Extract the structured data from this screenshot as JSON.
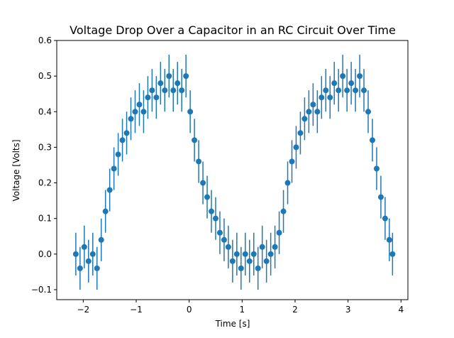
{
  "chart_data": {
    "type": "errorbar",
    "title": "Voltage Drop Over a Capacitor in an RC Circuit Over Time",
    "xlabel": "Time [s]",
    "ylabel": "Voltage [Volts]",
    "x": [
      -2.14,
      -2.06,
      -1.98,
      -1.9,
      -1.82,
      -1.74,
      -1.66,
      -1.58,
      -1.5,
      -1.42,
      -1.34,
      -1.26,
      -1.18,
      -1.1,
      -1.02,
      -0.94,
      -0.86,
      -0.78,
      -0.7,
      -0.62,
      -0.54,
      -0.46,
      -0.38,
      -0.3,
      -0.22,
      -0.14,
      -0.06,
      0.02,
      0.1,
      0.18,
      0.26,
      0.34,
      0.42,
      0.5,
      0.58,
      0.66,
      0.74,
      0.82,
      0.9,
      0.98,
      1.06,
      1.14,
      1.22,
      1.3,
      1.38,
      1.46,
      1.54,
      1.62,
      1.7,
      1.78,
      1.86,
      1.94,
      2.02,
      2.1,
      2.18,
      2.26,
      2.34,
      2.42,
      2.5,
      2.58,
      2.66,
      2.74,
      2.82,
      2.9,
      2.98,
      3.06,
      3.14,
      3.22,
      3.3,
      3.38,
      3.46,
      3.54,
      3.62,
      3.7,
      3.78,
      3.84
    ],
    "series": [
      {
        "color": "#1f77b4",
        "values": [
          0,
          -0.04,
          0.02,
          -0.02,
          0,
          -0.04,
          0.04,
          0.12,
          0.18,
          0.24,
          0.28,
          0.32,
          0.34,
          0.38,
          0.4,
          0.42,
          0.4,
          0.44,
          0.46,
          0.44,
          0.48,
          0.46,
          0.5,
          0.46,
          0.48,
          0.46,
          0.5,
          0.4,
          0.32,
          0.26,
          0.2,
          0.16,
          0.12,
          0.1,
          0.06,
          0.04,
          0.02,
          -0.02,
          0,
          -0.04,
          0,
          -0.02,
          0,
          -0.04,
          0.02,
          -0.02,
          0,
          0.02,
          0.06,
          0.12,
          0.2,
          0.26,
          0.3,
          0.34,
          0.38,
          0.4,
          0.42,
          0.4,
          0.44,
          0.46,
          0.44,
          0.48,
          0.46,
          0.5,
          0.46,
          0.48,
          0.46,
          0.5,
          0.46,
          0.4,
          0.32,
          0.24,
          0.16,
          0.1,
          0.04,
          0
        ]
      }
    ],
    "yerr": 0.06,
    "xlim": [
      -2.5,
      4.13
    ],
    "ylim": [
      -0.128,
      0.6
    ],
    "xticks": [
      {
        "value": -2,
        "label": "−2"
      },
      {
        "value": -1,
        "label": "−1"
      },
      0,
      1,
      2,
      3,
      4
    ],
    "yticks": [
      {
        "value": -0.1,
        "label": "−0.1"
      },
      {
        "value": 0,
        "label": "0.0"
      },
      0.1,
      0.2,
      0.3,
      0.4,
      0.5,
      0.6
    ]
  }
}
